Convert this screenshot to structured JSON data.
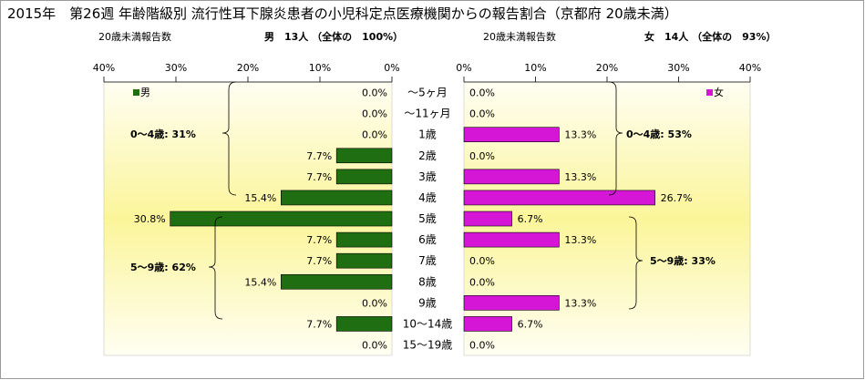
{
  "title": "2015年　第26週 年齢階級別 流行性耳下腺炎患者の小児科定点医療機関からの報告割合（京都府 20歳未満）",
  "male_header": {
    "report_label": "20歳未満報告数",
    "summary": "男　13人 （全体の　100%）"
  },
  "female_header": {
    "report_label": "20歳未満報告数",
    "summary": "女　14人 （全体の　93%）"
  },
  "male_axis_ticks": [
    "40%",
    "30%",
    "20%",
    "10%",
    "0%"
  ],
  "female_axis_ticks": [
    "0%",
    "10%",
    "20%",
    "30%",
    "40%"
  ],
  "male_group_labels": [
    "0～4歳: 31%",
    "5～9歳: 62%"
  ],
  "female_group_labels": [
    "0～4歳: 53%",
    "5～9歳: 33%"
  ],
  "colors": {
    "male": "#1f6e12",
    "female": "#d616d6",
    "panel_edge": "#fffef2",
    "panel_center": "#fbf59a"
  },
  "chart_data": {
    "type": "bar",
    "categories": [
      "～5ヶ月",
      "～11ヶ月",
      "1歳",
      "2歳",
      "3歳",
      "4歳",
      "5歳",
      "6歳",
      "7歳",
      "8歳",
      "9歳",
      "10～14歳",
      "15～19歳"
    ],
    "xlim": [
      0,
      40
    ],
    "series": [
      {
        "name": "男",
        "values": [
          0.0,
          0.0,
          0.0,
          7.7,
          7.7,
          15.4,
          30.8,
          7.7,
          7.7,
          15.4,
          0.0,
          7.7,
          0.0
        ],
        "labels": [
          "0.0%",
          "0.0%",
          "0.0%",
          "7.7%",
          "7.7%",
          "15.4%",
          "30.8%",
          "7.7%",
          "7.7%",
          "15.4%",
          "0.0%",
          "7.7%",
          "0.0%"
        ]
      },
      {
        "name": "女",
        "values": [
          0.0,
          0.0,
          13.3,
          0.0,
          13.3,
          26.7,
          6.7,
          13.3,
          0.0,
          0.0,
          13.3,
          6.7,
          0.0
        ],
        "labels": [
          "0.0%",
          "0.0%",
          "13.3%",
          "0.0%",
          "13.3%",
          "26.7%",
          "6.7%",
          "13.3%",
          "0.0%",
          "0.0%",
          "13.3%",
          "6.7%",
          "0.0%"
        ]
      }
    ],
    "legend": [
      "男",
      "女"
    ]
  }
}
